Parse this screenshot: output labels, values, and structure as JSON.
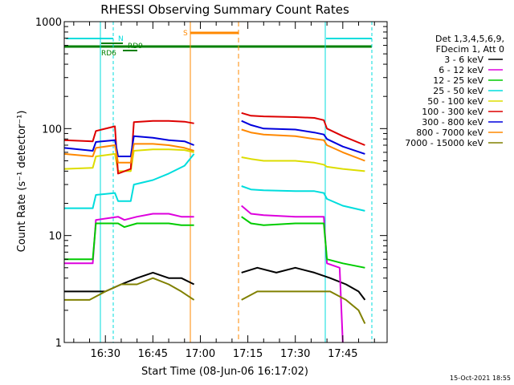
{
  "chart_data": {
    "type": "line",
    "title": "RHESSI Observing Summary Count Rates",
    "xlabel": "Start Time (08-Jun-06 16:17:02)",
    "ylabel": "Count Rate (s⁻¹ detector⁻¹)",
    "yscale": "log",
    "ylim": [
      1,
      1000
    ],
    "xlim": [
      "16:17",
      "17:59"
    ],
    "x_ticks": [
      "16:30",
      "16:45",
      "17:00",
      "17:15",
      "17:30",
      "17:45"
    ],
    "y_ticks": [
      "1",
      "10",
      "100",
      "1000"
    ],
    "legend_header": [
      "Det 1,3,4,5,6,9,",
      "FDecim 1, Att 0"
    ],
    "legend_position": "right",
    "series": [
      {
        "name": "3 - 6 keV",
        "color": "#000000",
        "segments": [
          {
            "x": [
              "16:17",
              "16:25",
              "16:30",
              "16:35",
              "16:40",
              "16:45",
              "16:50",
              "16:54",
              "16:58"
            ],
            "y": [
              3,
              3,
              3,
              3.5,
              4,
              4.5,
              4,
              4,
              3.5
            ]
          },
          {
            "x": [
              "17:13",
              "17:18",
              "17:24",
              "17:30",
              "17:36",
              "17:41",
              "17:46",
              "17:50",
              "17:52"
            ],
            "y": [
              4.5,
              5,
              4.5,
              5,
              4.5,
              4,
              3.5,
              3,
              2.5
            ]
          }
        ]
      },
      {
        "name": "6 - 12 keV",
        "color": "#dd00dd",
        "segments": [
          {
            "x": [
              "16:17",
              "16:26",
              "16:27",
              "16:34",
              "16:36",
              "16:40",
              "16:45",
              "16:50",
              "16:54",
              "16:58"
            ],
            "y": [
              5.5,
              5.5,
              14,
              15,
              14,
              15,
              16,
              16,
              15,
              15
            ]
          },
          {
            "x": [
              "17:13",
              "17:16",
              "17:20",
              "17:30",
              "17:36",
              "17:39",
              "17:40",
              "17:44",
              "17:45"
            ],
            "y": [
              19,
              16,
              15.5,
              15,
              15,
              15,
              5.5,
              5,
              1
            ]
          }
        ]
      },
      {
        "name": "12 - 25 keV",
        "color": "#00cc00",
        "segments": [
          {
            "x": [
              "16:17",
              "16:26",
              "16:27",
              "16:34",
              "16:36",
              "16:40",
              "16:45",
              "16:50",
              "16:54",
              "16:58"
            ],
            "y": [
              6,
              6,
              13,
              13,
              12,
              13,
              13,
              13,
              12.5,
              12.5
            ]
          },
          {
            "x": [
              "17:13",
              "17:16",
              "17:20",
              "17:30",
              "17:36",
              "17:39",
              "17:40",
              "17:45",
              "17:52"
            ],
            "y": [
              15,
              13,
              12.5,
              13,
              13,
              13,
              6,
              5.5,
              5
            ]
          }
        ]
      },
      {
        "name": "25 - 50 keV",
        "color": "#00dddd",
        "segments": [
          {
            "x": [
              "16:17",
              "16:26",
              "16:27",
              "16:33",
              "16:34",
              "16:38",
              "16:39",
              "16:45",
              "16:50",
              "16:55",
              "16:58"
            ],
            "y": [
              18,
              18,
              24,
              25,
              21,
              21,
              30,
              33,
              38,
              45,
              58
            ]
          },
          {
            "x": [
              "17:13",
              "17:16",
              "17:20",
              "17:30",
              "17:36",
              "17:39",
              "17:40",
              "17:45",
              "17:52"
            ],
            "y": [
              29,
              27,
              26.5,
              26,
              26,
              25,
              22,
              19,
              17
            ]
          }
        ]
      },
      {
        "name": "50 - 100 keV",
        "color": "#dddd00",
        "segments": [
          {
            "x": [
              "16:17",
              "16:26",
              "16:27",
              "16:33",
              "16:34",
              "16:38",
              "16:39",
              "16:45",
              "16:50",
              "16:55",
              "16:58"
            ],
            "y": [
              42,
              43,
              55,
              58,
              40,
              40,
              62,
              64,
              64,
              63,
              60
            ]
          },
          {
            "x": [
              "17:13",
              "17:16",
              "17:20",
              "17:30",
              "17:36",
              "17:39",
              "17:40",
              "17:45",
              "17:52"
            ],
            "y": [
              54,
              52,
              50,
              50,
              48,
              46,
              44,
              42,
              40
            ]
          }
        ]
      },
      {
        "name": "100 - 300 keV",
        "color": "#dd0000",
        "segments": [
          {
            "x": [
              "16:17",
              "16:26",
              "16:27",
              "16:33",
              "16:34",
              "16:38",
              "16:39",
              "16:45",
              "16:50",
              "16:55",
              "16:58"
            ],
            "y": [
              78,
              76,
              95,
              105,
              38,
              42,
              115,
              118,
              118,
              116,
              112
            ]
          },
          {
            "x": [
              "17:13",
              "17:16",
              "17:20",
              "17:30",
              "17:36",
              "17:39",
              "17:40",
              "17:45",
              "17:52"
            ],
            "y": [
              140,
              132,
              130,
              128,
              126,
              120,
              100,
              85,
              70
            ]
          }
        ]
      },
      {
        "name": "300 - 800 keV",
        "color": "#0000dd",
        "segments": [
          {
            "x": [
              "16:17",
              "16:26",
              "16:27",
              "16:33",
              "16:34",
              "16:38",
              "16:39",
              "16:45",
              "16:50",
              "16:55",
              "16:58"
            ],
            "y": [
              66,
              62,
              75,
              78,
              55,
              55,
              85,
              82,
              78,
              76,
              70
            ]
          },
          {
            "x": [
              "17:13",
              "17:16",
              "17:20",
              "17:30",
              "17:36",
              "17:39",
              "17:40",
              "17:45",
              "17:52"
            ],
            "y": [
              118,
              108,
              100,
              98,
              92,
              88,
              80,
              68,
              58
            ]
          }
        ]
      },
      {
        "name": "800 - 7000 keV",
        "color": "#ff8800",
        "segments": [
          {
            "x": [
              "16:17",
              "16:26",
              "16:27",
              "16:33",
              "16:34",
              "16:38",
              "16:39",
              "16:45",
              "16:50",
              "16:55",
              "16:58"
            ],
            "y": [
              58,
              55,
              66,
              70,
              48,
              48,
              72,
              72,
              70,
              66,
              62
            ]
          },
          {
            "x": [
              "17:13",
              "17:16",
              "17:20",
              "17:30",
              "17:36",
              "17:39",
              "17:40",
              "17:45",
              "17:52"
            ],
            "y": [
              98,
              92,
              88,
              85,
              80,
              78,
              70,
              60,
              50
            ]
          }
        ]
      },
      {
        "name": "7000 - 15000 keV",
        "color": "#808000",
        "segments": [
          {
            "x": [
              "16:17",
              "16:25",
              "16:30",
              "16:35",
              "16:40",
              "16:45",
              "16:50",
              "16:54",
              "16:58"
            ],
            "y": [
              2.5,
              2.5,
              3,
              3.5,
              3.5,
              4,
              3.5,
              3,
              2.5
            ]
          },
          {
            "x": [
              "17:13",
              "17:18",
              "17:24",
              "17:30",
              "17:36",
              "17:41",
              "17:46",
              "17:50",
              "17:52"
            ],
            "y": [
              2.5,
              3,
              3,
              3,
              3,
              3,
              2.5,
              2,
              1.5
            ]
          }
        ]
      }
    ],
    "annotations": [
      {
        "text": "N",
        "color": "#00dddd"
      },
      {
        "text": "S",
        "color": "#ff8800"
      },
      {
        "text": "RD6",
        "color": "#008000"
      },
      {
        "text": "RD9",
        "color": "#008000"
      }
    ],
    "footer_timestamp": "15-Oct-2021 18:55"
  }
}
